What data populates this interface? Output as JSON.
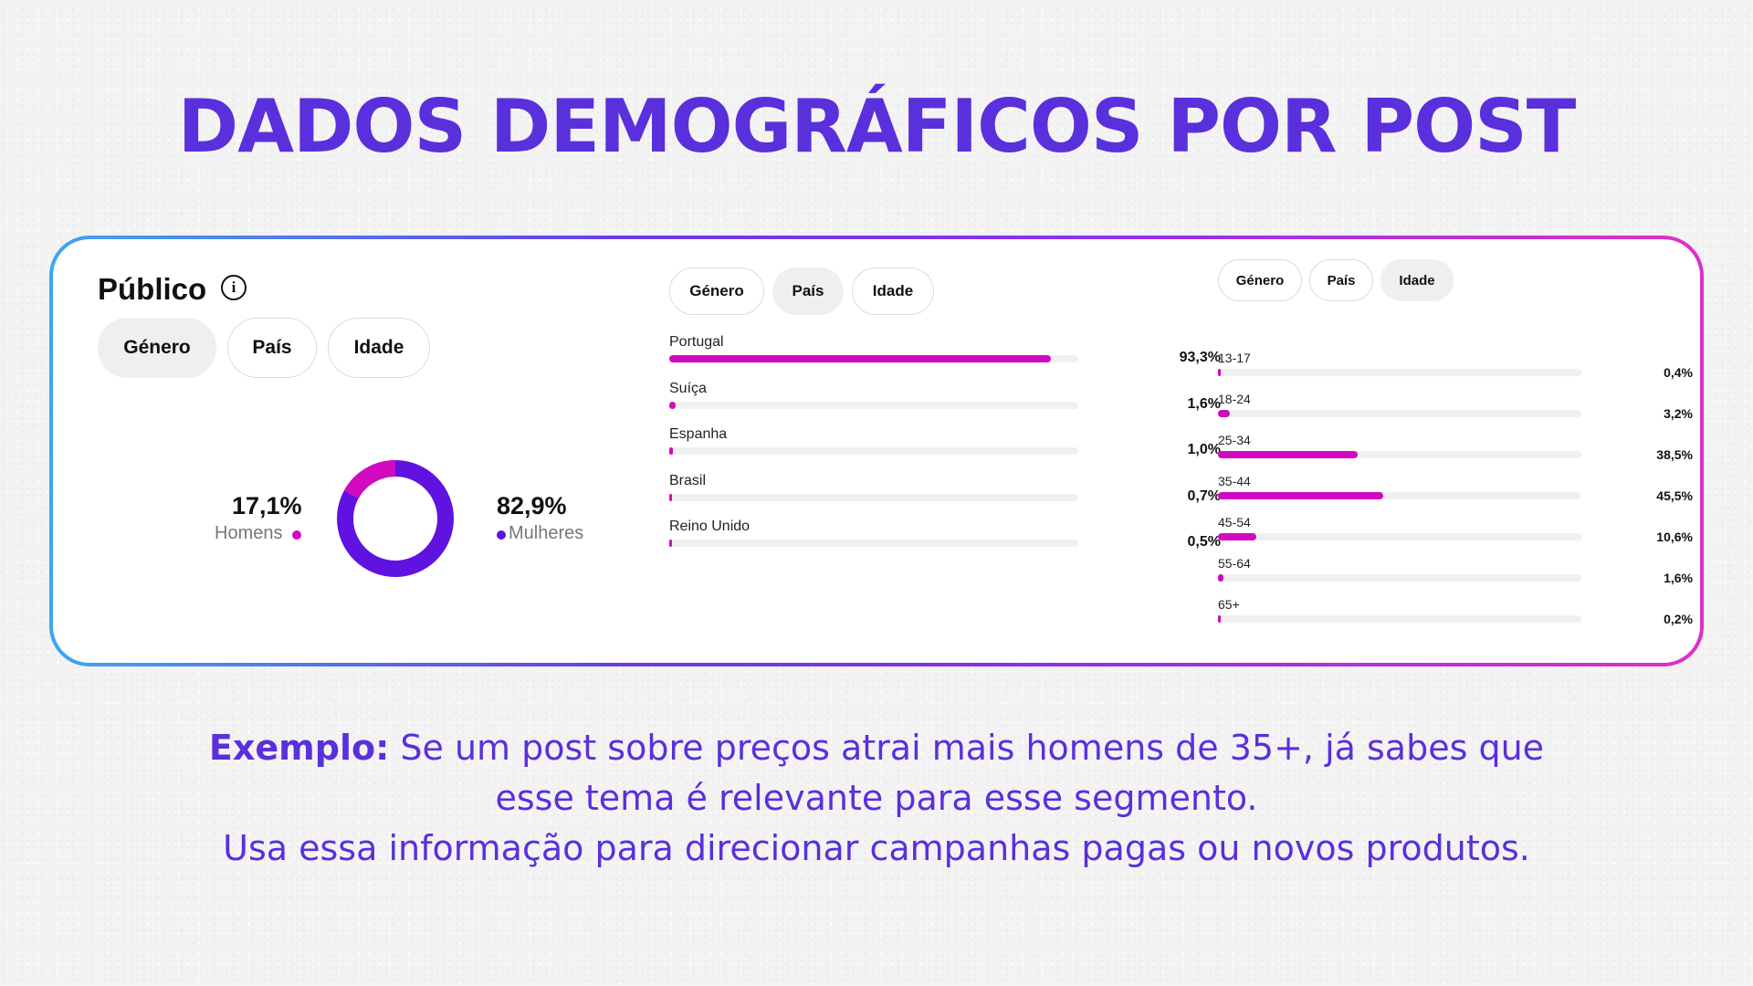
{
  "headline": "DADOS DEMOGRÁFICOS POR POST",
  "colors": {
    "brand_purple": "#5a2fdc",
    "bar_magenta": "#d10ac1",
    "donut_women": "#5f12e0",
    "donut_men": "#d10ac1"
  },
  "panel": {
    "title": "Público",
    "info_icon": "info-icon",
    "tabs": [
      {
        "label": "Género",
        "active": true
      },
      {
        "label": "País",
        "active": false
      },
      {
        "label": "Idade",
        "active": false
      }
    ],
    "gender": {
      "men_pct": "17,1%",
      "men_label": "Homens",
      "women_pct": "82,9%",
      "women_label": "Mulheres",
      "men_fraction": 0.171,
      "women_fraction": 0.829
    }
  },
  "country_panel": {
    "tabs": [
      {
        "label": "Género",
        "active": false
      },
      {
        "label": "País",
        "active": true
      },
      {
        "label": "Idade",
        "active": false
      }
    ],
    "rows": [
      {
        "label": "Portugal",
        "pct": "93,3%",
        "value": 93.3
      },
      {
        "label": "Suíça",
        "pct": "1,6%",
        "value": 1.6
      },
      {
        "label": "Espanha",
        "pct": "1,0%",
        "value": 1.0
      },
      {
        "label": "Brasil",
        "pct": "0,7%",
        "value": 0.7
      },
      {
        "label": "Reino Unido",
        "pct": "0,5%",
        "value": 0.5
      }
    ]
  },
  "age_panel": {
    "tabs": [
      {
        "label": "Género",
        "active": false
      },
      {
        "label": "País",
        "active": false
      },
      {
        "label": "Idade",
        "active": true
      }
    ],
    "rows": [
      {
        "label": "13-17",
        "pct": "0,4%",
        "value": 0.4
      },
      {
        "label": "18-24",
        "pct": "3,2%",
        "value": 3.2
      },
      {
        "label": "25-34",
        "pct": "38,5%",
        "value": 38.5
      },
      {
        "label": "35-44",
        "pct": "45,5%",
        "value": 45.5
      },
      {
        "label": "45-54",
        "pct": "10,6%",
        "value": 10.6
      },
      {
        "label": "55-64",
        "pct": "1,6%",
        "value": 1.6
      },
      {
        "label": "65+",
        "pct": "0,2%",
        "value": 0.2
      }
    ]
  },
  "caption": {
    "lead": "Exemplo:",
    "line1": " Se um post sobre preços atrai mais homens de 35+, já sabes que",
    "line2": "esse tema é relevante para esse segmento.",
    "line3": "Usa essa informação para direcionar campanhas pagas ou novos produtos."
  }
}
